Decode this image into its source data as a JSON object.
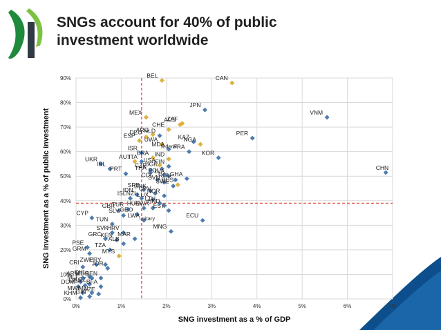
{
  "header": {
    "title_line1": "SNGs account for 40% of public",
    "title_line2": "investment worldwide",
    "logo": "oecd-logo-icon"
  },
  "colors": {
    "federal_points": "#e2b437",
    "unitary_points": "#4f7db3",
    "reference_line": "#d9443a",
    "grid": "#d9d9d9",
    "accent_swoosh": "#0d4f8c"
  },
  "chart_data": {
    "type": "scatter",
    "xlabel": "SNG investment as a % of GDP",
    "ylabel": "SNG investment as a % of public investment",
    "xlim": [
      0,
      7
    ],
    "ylim": [
      0,
      90
    ],
    "x_ticks": [
      {
        "value": 0,
        "label": "0%"
      },
      {
        "value": 1,
        "label": "1%"
      },
      {
        "value": 2,
        "label": "2%"
      },
      {
        "value": 3,
        "label": "3%"
      },
      {
        "value": 4,
        "label": "4%"
      },
      {
        "value": 5,
        "label": "5%"
      },
      {
        "value": 6,
        "label": "6%"
      },
      {
        "value": 7,
        "label": "7%"
      }
    ],
    "y_ticks": [
      {
        "value": 0,
        "label": "0%"
      },
      {
        "value": 10,
        "label": "10%"
      },
      {
        "value": 20,
        "label": "20%"
      },
      {
        "value": 30,
        "label": "30%"
      },
      {
        "value": 40,
        "label": "40%"
      },
      {
        "value": 50,
        "label": "50%"
      },
      {
        "value": 60,
        "label": "60%"
      },
      {
        "value": 70,
        "label": "70%"
      },
      {
        "value": 80,
        "label": "80%"
      },
      {
        "value": 90,
        "label": "90%"
      }
    ],
    "grid": true,
    "reference_lines": {
      "x": 1.45,
      "y": 39
    },
    "annotations": [
      {
        "text": "federal",
        "x": 1.88,
        "y": 61.5
      },
      {
        "text": "unitary",
        "x": 1.4,
        "y": 32
      }
    ],
    "series": [
      {
        "type": "federal",
        "points": [
          {
            "label": "BEL",
            "x": 1.9,
            "y": 89
          },
          {
            "label": "CAN",
            "x": 3.45,
            "y": 88
          },
          {
            "label": "MEX",
            "x": 1.55,
            "y": 74
          },
          {
            "label": "CHE",
            "x": 2.05,
            "y": 69
          },
          {
            "label": "AUS",
            "x": 2.3,
            "y": 71
          },
          {
            "label": "ZAF",
            "x": 2.35,
            "y": 71.5
          },
          {
            "label": "DEU",
            "x": 1.55,
            "y": 66
          },
          {
            "label": "ESP",
            "x": 1.4,
            "y": 64.5
          },
          {
            "label": "ARG",
            "x": 1.7,
            "y": 67
          },
          {
            "label": "UWA",
            "x": 1.9,
            "y": 63
          },
          {
            "label": "NGA",
            "x": 2.75,
            "y": 63
          },
          {
            "label": "AUT",
            "x": 1.3,
            "y": 56
          },
          {
            "label": "USA",
            "x": 1.85,
            "y": 54.5
          },
          {
            "label": "IND",
            "x": 2.05,
            "y": 57
          },
          {
            "label": "BRA",
            "x": 1.7,
            "y": 57.5
          },
          {
            "label": "RUS",
            "x": 2.25,
            "y": 46.5
          },
          {
            "label": "MYS",
            "x": 0.95,
            "y": 17.5
          }
        ]
      },
      {
        "type": "unitary",
        "points": [
          {
            "label": "JPN",
            "x": 2.85,
            "y": 77
          },
          {
            "label": "VNM",
            "x": 5.55,
            "y": 74
          },
          {
            "label": "PER",
            "x": 3.9,
            "y": 65.5
          },
          {
            "label": "CHN",
            "x": 6.85,
            "y": 51.5
          },
          {
            "label": "KOR",
            "x": 3.15,
            "y": 57.5
          },
          {
            "label": "KAZ",
            "x": 2.6,
            "y": 64
          },
          {
            "label": "FRA",
            "x": 2.5,
            "y": 60
          },
          {
            "label": "NLD",
            "x": 1.85,
            "y": 66.5
          },
          {
            "label": "ISR",
            "x": 1.45,
            "y": 59.5
          },
          {
            "label": "MDA",
            "x": 2.05,
            "y": 61
          },
          {
            "label": "ITA",
            "x": 1.45,
            "y": 56
          },
          {
            "label": "UKR",
            "x": 0.55,
            "y": 55
          },
          {
            "label": "IRL",
            "x": 0.75,
            "y": 53
          },
          {
            "label": "PRT",
            "x": 1.1,
            "y": 51
          },
          {
            "label": "CZE",
            "x": 1.65,
            "y": 52.5
          },
          {
            "label": "BGR",
            "x": 1.9,
            "y": 53
          },
          {
            "label": "FIN",
            "x": 2.05,
            "y": 54
          },
          {
            "label": "THA",
            "x": 1.65,
            "y": 51.5
          },
          {
            "label": "POL",
            "x": 1.95,
            "y": 50.5
          },
          {
            "label": "LVA",
            "x": 2.05,
            "y": 50
          },
          {
            "label": "GHA",
            "x": 2.45,
            "y": 49
          },
          {
            "label": "ROU",
            "x": 2.2,
            "y": 48.5
          },
          {
            "label": "COL",
            "x": 1.8,
            "y": 48.5
          },
          {
            "label": "SVN",
            "x": 1.95,
            "y": 47.5
          },
          {
            "label": "SWE",
            "x": 2.15,
            "y": 46
          },
          {
            "label": "SRB",
            "x": 1.5,
            "y": 44.5
          },
          {
            "label": "DNK",
            "x": 1.65,
            "y": 44
          },
          {
            "label": "IDN",
            "x": 1.35,
            "y": 42.5
          },
          {
            "label": "CPV",
            "x": 1.75,
            "y": 43
          },
          {
            "label": "NOR",
            "x": 1.95,
            "y": 42
          },
          {
            "label": "ISL",
            "x": 1.2,
            "y": 41
          },
          {
            "label": "NZL",
            "x": 1.45,
            "y": 41
          },
          {
            "label": "LUX",
            "x": 1.7,
            "y": 40.5
          },
          {
            "label": "LTU",
            "x": 1.85,
            "y": 39
          },
          {
            "label": "GBR",
            "x": 0.95,
            "y": 36
          },
          {
            "label": "TUR",
            "x": 1.15,
            "y": 36.5
          },
          {
            "label": "HUN",
            "x": 1.5,
            "y": 37
          },
          {
            "label": "EWA",
            "x": 1.7,
            "y": 37
          },
          {
            "label": "HND",
            "x": 1.95,
            "y": 38
          },
          {
            "label": "EST",
            "x": 2.05,
            "y": 36
          },
          {
            "label": "CYP",
            "x": 0.35,
            "y": 33
          },
          {
            "label": "SLV",
            "x": 1.05,
            "y": 34
          },
          {
            "label": "GEO",
            "x": 1.35,
            "y": 34.5
          },
          {
            "label": "LWA",
            "x": 1.5,
            "y": 32
          },
          {
            "label": "ECU",
            "x": 2.8,
            "y": 32
          },
          {
            "label": "TUN",
            "x": 0.8,
            "y": 30.5
          },
          {
            "label": "MNG",
            "x": 2.1,
            "y": 27.5
          },
          {
            "label": "SVK",
            "x": 0.8,
            "y": 27
          },
          {
            "label": "HRV",
            "x": 1.05,
            "y": 27
          },
          {
            "label": "GRC",
            "x": 0.65,
            "y": 24.5
          },
          {
            "label": "KEN",
            "x": 0.9,
            "y": 24
          },
          {
            "label": "MAR",
            "x": 1.3,
            "y": 24.5
          },
          {
            "label": "ALB",
            "x": 1.05,
            "y": 22.5
          },
          {
            "label": "PSE",
            "x": 0.25,
            "y": 21
          },
          {
            "label": "TZA",
            "x": 0.75,
            "y": 20
          },
          {
            "label": "GRM",
            "x": 0.3,
            "y": 18.5
          },
          {
            "label": "ZWE",
            "x": 0.45,
            "y": 14
          },
          {
            "label": "PRY",
            "x": 0.65,
            "y": 14
          },
          {
            "label": "JOR",
            "x": 0.7,
            "y": 12.5
          },
          {
            "label": "CRI",
            "x": 0.15,
            "y": 13
          },
          {
            "label": "CHL",
            "x": 0.3,
            "y": 9
          },
          {
            "label": "ARM",
            "x": 0.15,
            "y": 8.5
          },
          {
            "label": "MUS",
            "x": 0.35,
            "y": 8.5
          },
          {
            "label": "BEN",
            "x": 0.55,
            "y": 8.5
          },
          {
            "label": "MLI",
            "x": 0.1,
            "y": 7
          },
          {
            "label": "KGZ",
            "x": 0.3,
            "y": 6
          },
          {
            "label": "DOM",
            "x": 0.05,
            "y": 5
          },
          {
            "label": "UGA",
            "x": 0.2,
            "y": 5.5
          },
          {
            "label": "BFA",
            "x": 0.55,
            "y": 5
          },
          {
            "label": "MWI",
            "x": 0.15,
            "y": 2.5
          },
          {
            "label": "MLI",
            "x": 0.35,
            "y": 2.5
          },
          {
            "label": "KHM",
            "x": 0.1,
            "y": 0.5
          },
          {
            "label": "GIN",
            "x": 0.3,
            "y": 1
          },
          {
            "label": "AZE",
            "x": 0.5,
            "y": 2
          }
        ]
      }
    ]
  }
}
